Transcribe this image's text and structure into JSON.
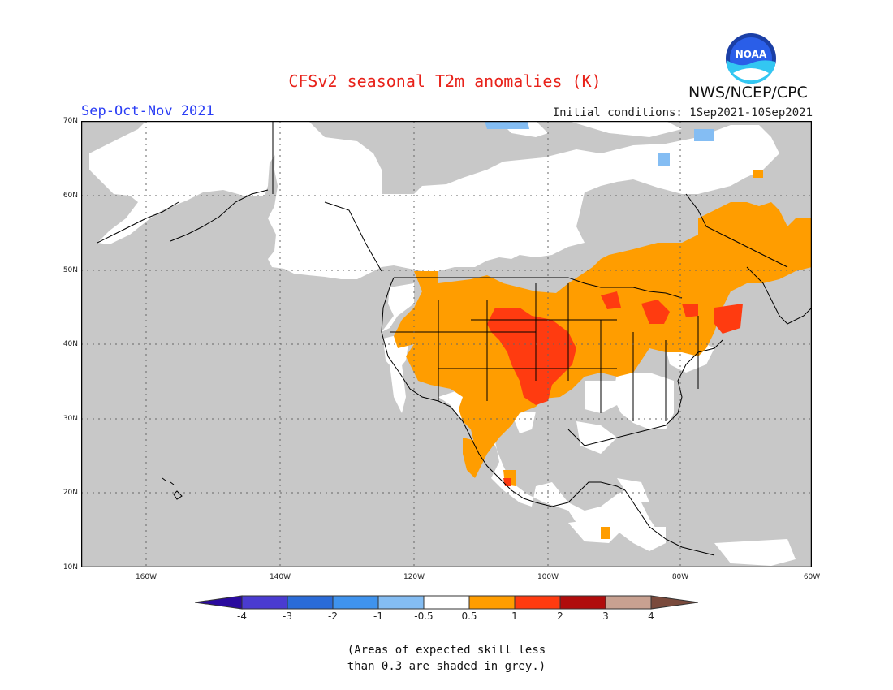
{
  "title": "CFSv2 seasonal T2m anomalies (K)",
  "season": "Sep-Oct-Nov 2021",
  "initial_conditions": "Initial conditions: 1Sep2021-10Sep2021",
  "agency": "NWS/NCEP/CPC",
  "logo_text": "NOAA",
  "lat_labels": [
    "70N",
    "60N",
    "50N",
    "40N",
    "30N",
    "20N",
    "10N"
  ],
  "lon_labels": [
    "160W",
    "140W",
    "120W",
    "100W",
    "80W",
    "60W"
  ],
  "colorbar_labels": [
    "-4",
    "-3",
    "-2",
    "-1",
    "-0.5",
    "0.5",
    "1",
    "2",
    "3",
    "4"
  ],
  "colorbar_colors": [
    "#2a0a9e",
    "#4a3bd1",
    "#2a6bd8",
    "#3f93ee",
    "#84bdf3",
    "#ffffff",
    "#ff9d00",
    "#ff3b10",
    "#b00c0c",
    "#c8a191",
    "#7a4a3c"
  ],
  "legend_note_line1": "(Areas of expected skill less",
  "legend_note_line2": "than 0.3 are shaded in grey.)",
  "colors": {
    "title": "#e8221a",
    "season": "#2b3ef5",
    "no_skill_grey": "#c8c8c8",
    "warm_0_5_1": "#ff9d00",
    "warm_1_2": "#ff3b10"
  }
}
